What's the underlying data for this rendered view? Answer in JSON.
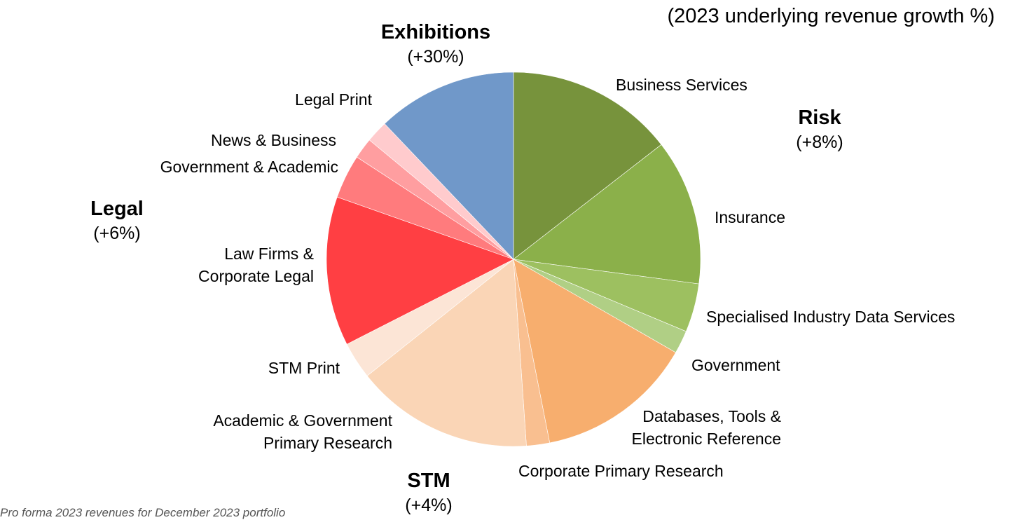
{
  "chart_data": {
    "type": "pie",
    "subtitle": "(2023 underlying revenue growth %)",
    "footnote": "Pro forma 2023 revenues for December 2023 portfolio",
    "groups": [
      {
        "name": "Risk",
        "growth": "(+8%)"
      },
      {
        "name": "STM",
        "growth": "(+4%)"
      },
      {
        "name": "Legal",
        "growth": "(+6%)"
      },
      {
        "name": "Exhibitions",
        "growth": "(+30%)"
      }
    ],
    "slices": [
      {
        "label": "Business Services",
        "group": "Risk",
        "value": 14.5,
        "color": "#77933C"
      },
      {
        "label": "Insurance",
        "group": "Risk",
        "value": 12.6,
        "color": "#8BB04A"
      },
      {
        "label": "Specialised Industry Data Services",
        "group": "Risk",
        "value": 4.2,
        "color": "#9DC060"
      },
      {
        "label": "Government",
        "group": "Risk",
        "value": 2.0,
        "color": "#B0CF85"
      },
      {
        "label": "Databases, Tools & Electronic Reference",
        "group": "STM",
        "value": 13.6,
        "color": "#F7AE6E"
      },
      {
        "label": "Corporate Primary Research",
        "group": "STM",
        "value": 2.0,
        "color": "#F9BF90"
      },
      {
        "label": "Academic & Government Primary Research",
        "group": "STM",
        "value": 15.4,
        "color": "#FAD5B6"
      },
      {
        "label": "STM Print",
        "group": "STM",
        "value": 3.2,
        "color": "#FCE5D6"
      },
      {
        "label": "Law Firms & Corporate Legal",
        "group": "Legal",
        "value": 12.9,
        "color": "#FF3F43"
      },
      {
        "label": "Government & Academic",
        "group": "Legal",
        "value": 3.8,
        "color": "#FF7B7D"
      },
      {
        "label": "News & Business",
        "group": "Legal",
        "value": 1.8,
        "color": "#FF9EA0"
      },
      {
        "label": "Legal Print",
        "group": "Legal",
        "value": 1.9,
        "color": "#FFCBCD"
      },
      {
        "label": "Exhibitions",
        "group": "Exhibitions",
        "value": 12.1,
        "color": "#7098C9"
      }
    ]
  },
  "labels": {
    "business_services": "Business Services",
    "insurance": "Insurance",
    "specialised": "Specialised Industry Data Services",
    "government": "Government",
    "databases_1": "Databases, Tools &",
    "databases_2": "Electronic Reference",
    "corporate_primary": "Corporate Primary Research",
    "academic_1": "Academic & Government",
    "academic_2": "Primary Research",
    "stm_print": "STM Print",
    "law_1": "Law Firms &",
    "law_2": "Corporate Legal",
    "gov_academic": "Government & Academic",
    "news_business": "News & Business",
    "legal_print": "Legal Print"
  }
}
